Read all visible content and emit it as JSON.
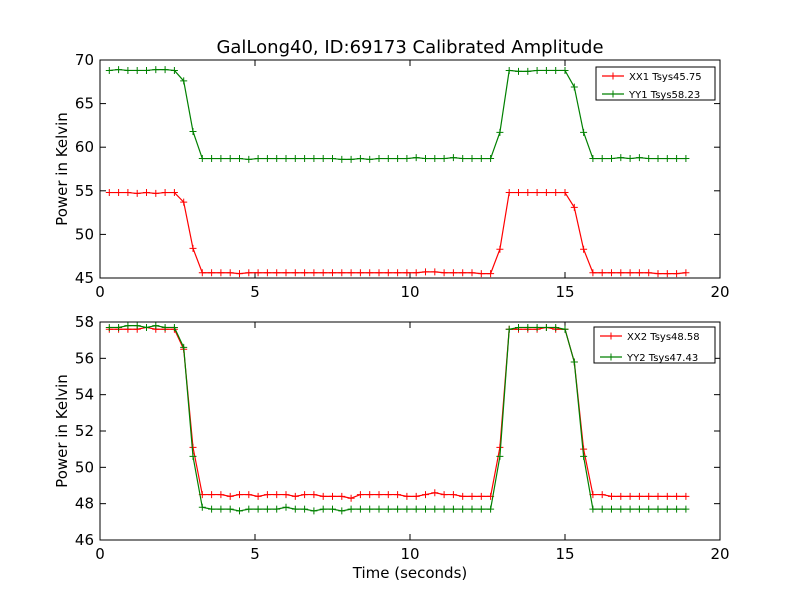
{
  "title": "GalLong40, ID:69173 Calibrated Amplitude",
  "chart_data": [
    {
      "type": "line",
      "ylabel": "Power in Kelvin",
      "xlabel": "",
      "xlim": [
        0,
        20
      ],
      "ylim": [
        45,
        70
      ],
      "xticks": [
        "0",
        "5",
        "10",
        "15",
        "20"
      ],
      "yticks": [
        "45",
        "50",
        "55",
        "60",
        "65",
        "70"
      ],
      "legend_position": "top-right",
      "x": [
        0.3,
        0.6,
        0.9,
        1.2,
        1.5,
        1.8,
        2.1,
        2.4,
        2.7,
        3.0,
        3.3,
        3.6,
        3.9,
        4.2,
        4.5,
        4.8,
        5.1,
        5.4,
        5.7,
        6.0,
        6.3,
        6.6,
        6.9,
        7.2,
        7.5,
        7.8,
        8.1,
        8.4,
        8.7,
        9.0,
        9.3,
        9.6,
        9.9,
        10.2,
        10.5,
        10.8,
        11.1,
        11.4,
        11.7,
        12.0,
        12.3,
        12.6,
        12.9,
        13.2,
        13.5,
        13.8,
        14.1,
        14.4,
        14.7,
        15.0,
        15.3,
        15.6,
        15.9,
        16.2,
        16.5,
        16.8,
        17.1,
        17.4,
        17.7,
        18.0,
        18.3,
        18.6,
        18.9
      ],
      "series": [
        {
          "name": "XX1 Tsys45.75",
          "color": "#ff0000",
          "values": [
            54.8,
            54.8,
            54.8,
            54.7,
            54.8,
            54.7,
            54.8,
            54.8,
            53.7,
            48.4,
            45.6,
            45.6,
            45.6,
            45.6,
            45.5,
            45.6,
            45.6,
            45.6,
            45.6,
            45.6,
            45.6,
            45.6,
            45.6,
            45.6,
            45.6,
            45.6,
            45.6,
            45.6,
            45.6,
            45.6,
            45.6,
            45.6,
            45.6,
            45.6,
            45.7,
            45.7,
            45.6,
            45.6,
            45.6,
            45.6,
            45.5,
            45.5,
            48.3,
            54.8,
            54.8,
            54.8,
            54.8,
            54.8,
            54.8,
            54.8,
            53.1,
            48.3,
            45.6,
            45.6,
            45.6,
            45.6,
            45.6,
            45.6,
            45.6,
            45.5,
            45.5,
            45.5,
            45.6
          ]
        },
        {
          "name": "YY1 Tsys58.23",
          "color": "#008000",
          "values": [
            68.8,
            68.9,
            68.8,
            68.8,
            68.8,
            68.9,
            68.9,
            68.8,
            67.6,
            61.8,
            58.7,
            58.7,
            58.7,
            58.7,
            58.7,
            58.6,
            58.7,
            58.7,
            58.7,
            58.7,
            58.7,
            58.7,
            58.7,
            58.7,
            58.7,
            58.6,
            58.6,
            58.7,
            58.6,
            58.7,
            58.7,
            58.7,
            58.7,
            58.8,
            58.7,
            58.7,
            58.7,
            58.8,
            58.7,
            58.7,
            58.7,
            58.7,
            61.7,
            68.8,
            68.7,
            68.7,
            68.8,
            68.8,
            68.8,
            68.8,
            66.9,
            61.7,
            58.7,
            58.7,
            58.7,
            58.8,
            58.7,
            58.8,
            58.7,
            58.7,
            58.7,
            58.7,
            58.7
          ]
        }
      ]
    },
    {
      "type": "line",
      "ylabel": "Power in Kelvin",
      "xlabel": "Time (seconds)",
      "xlim": [
        0,
        20
      ],
      "ylim": [
        46,
        58
      ],
      "xticks": [
        "0",
        "5",
        "10",
        "15",
        "20"
      ],
      "yticks": [
        "46",
        "48",
        "50",
        "52",
        "54",
        "56",
        "58"
      ],
      "legend_position": "top-right",
      "x": [
        0.3,
        0.6,
        0.9,
        1.2,
        1.5,
        1.8,
        2.1,
        2.4,
        2.7,
        3.0,
        3.3,
        3.6,
        3.9,
        4.2,
        4.5,
        4.8,
        5.1,
        5.4,
        5.7,
        6.0,
        6.3,
        6.6,
        6.9,
        7.2,
        7.5,
        7.8,
        8.1,
        8.4,
        8.7,
        9.0,
        9.3,
        9.6,
        9.9,
        10.2,
        10.5,
        10.8,
        11.1,
        11.4,
        11.7,
        12.0,
        12.3,
        12.6,
        12.9,
        13.2,
        13.5,
        13.8,
        14.1,
        14.4,
        14.7,
        15.0,
        15.3,
        15.6,
        15.9,
        16.2,
        16.5,
        16.8,
        17.1,
        17.4,
        17.7,
        18.0,
        18.3,
        18.6,
        18.9
      ],
      "series": [
        {
          "name": "XX2 Tsys48.58",
          "color": "#ff0000",
          "values": [
            57.6,
            57.6,
            57.6,
            57.6,
            57.7,
            57.6,
            57.6,
            57.6,
            56.5,
            51.1,
            48.5,
            48.5,
            48.5,
            48.4,
            48.5,
            48.5,
            48.4,
            48.5,
            48.5,
            48.5,
            48.4,
            48.5,
            48.5,
            48.4,
            48.4,
            48.4,
            48.3,
            48.5,
            48.5,
            48.5,
            48.5,
            48.5,
            48.4,
            48.4,
            48.5,
            48.6,
            48.5,
            48.5,
            48.4,
            48.4,
            48.4,
            48.4,
            51.1,
            57.6,
            57.6,
            57.6,
            57.6,
            57.7,
            57.6,
            57.6,
            55.8,
            51.0,
            48.5,
            48.5,
            48.4,
            48.4,
            48.4,
            48.4,
            48.4,
            48.4,
            48.4,
            48.4,
            48.4
          ]
        },
        {
          "name": "YY2 Tsys47.43",
          "color": "#008000",
          "values": [
            57.7,
            57.7,
            57.8,
            57.8,
            57.7,
            57.8,
            57.7,
            57.7,
            56.6,
            50.6,
            47.8,
            47.7,
            47.7,
            47.7,
            47.6,
            47.7,
            47.7,
            47.7,
            47.7,
            47.8,
            47.7,
            47.7,
            47.6,
            47.7,
            47.7,
            47.6,
            47.7,
            47.7,
            47.7,
            47.7,
            47.7,
            47.7,
            47.7,
            47.7,
            47.7,
            47.7,
            47.7,
            47.7,
            47.7,
            47.7,
            47.7,
            47.7,
            50.6,
            57.6,
            57.7,
            57.7,
            57.7,
            57.7,
            57.7,
            57.6,
            55.8,
            50.6,
            47.7,
            47.7,
            47.7,
            47.7,
            47.7,
            47.7,
            47.7,
            47.7,
            47.7,
            47.7,
            47.7
          ]
        }
      ]
    }
  ]
}
